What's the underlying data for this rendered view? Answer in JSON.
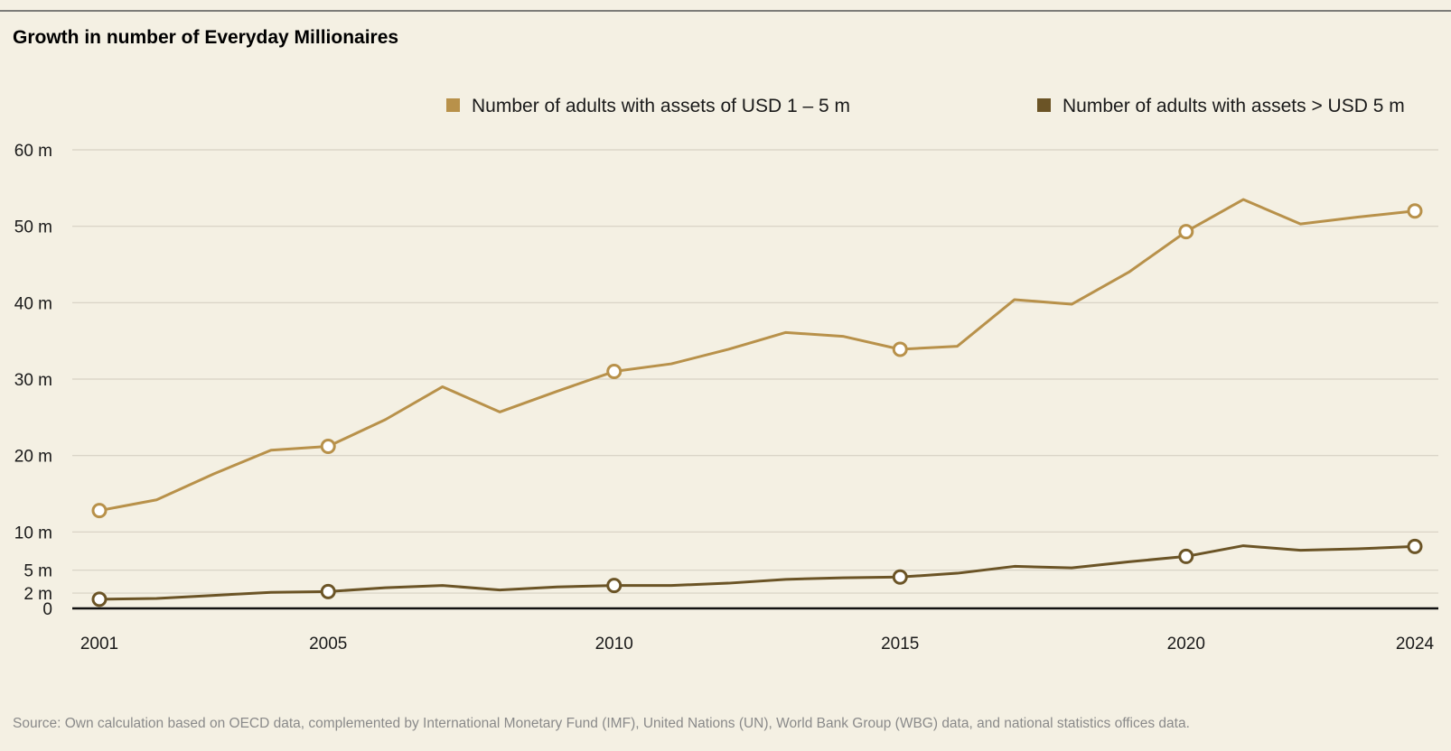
{
  "chart_data": {
    "type": "line",
    "title": "Growth in number of Everyday Millionaires",
    "source": "Source: Own calculation based on OECD data, complemented by International Monetary Fund (IMF), United Nations (UN), World Bank Group (WBG) data, and national statistics offices data.",
    "xlabel": "",
    "ylabel": "",
    "x": [
      2001,
      2002,
      2003,
      2004,
      2005,
      2006,
      2007,
      2008,
      2009,
      2010,
      2011,
      2012,
      2013,
      2014,
      2015,
      2016,
      2017,
      2018,
      2019,
      2020,
      2021,
      2022,
      2023,
      2024
    ],
    "x_ticks": [
      2001,
      2005,
      2010,
      2015,
      2020,
      2024
    ],
    "x_tick_labels": [
      "2001",
      "2005",
      "2010",
      "2015",
      "2020",
      "2024"
    ],
    "y_ticks": [
      0,
      2,
      5,
      10,
      20,
      30,
      40,
      50,
      60
    ],
    "y_tick_labels": [
      "0",
      "2 m",
      "5 m",
      "10 m",
      "20 m",
      "30 m",
      "40 m",
      "50 m",
      "60 m"
    ],
    "ylim": [
      0,
      60
    ],
    "grid": true,
    "legend_position": "top-right",
    "series": [
      {
        "name": "Number of adults with assets of USD 1 – 5 m",
        "color": "#b8914a",
        "values": [
          12.8,
          14.2,
          17.6,
          20.7,
          21.2,
          24.7,
          29.0,
          25.7,
          28.4,
          31.0,
          32.0,
          33.9,
          36.1,
          35.6,
          33.9,
          34.3,
          40.4,
          39.8,
          44.0,
          49.3,
          53.5,
          50.3,
          51.2,
          52.0
        ]
      },
      {
        "name": "Number of adults with assets > USD 5 m",
        "color": "#6b5426",
        "values": [
          1.2,
          1.3,
          1.7,
          2.1,
          2.2,
          2.7,
          3.0,
          2.4,
          2.8,
          3.0,
          3.0,
          3.3,
          3.8,
          4.0,
          4.1,
          4.6,
          5.5,
          5.3,
          6.1,
          6.8,
          8.2,
          7.6,
          7.8,
          8.1
        ]
      }
    ]
  }
}
